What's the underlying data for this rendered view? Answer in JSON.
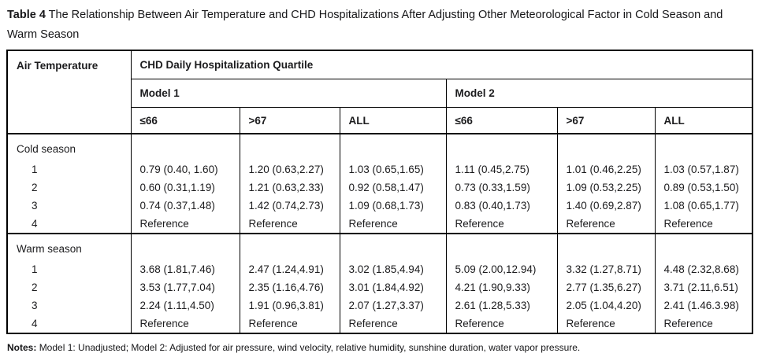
{
  "title": {
    "label": "Table 4",
    "text": "The Relationship Between Air Temperature and CHD Hospitalizations After Adjusting Other Meteorological Factor in Cold Season and Warm Season"
  },
  "table": {
    "col1_header": "Air Temperature",
    "group_header": "CHD Daily Hospitalization Quartile",
    "model_headers": [
      "Model 1",
      "Model 2"
    ],
    "quartile_headers": [
      "≤66",
      ">67",
      "ALL",
      "≤66",
      ">67",
      "ALL"
    ],
    "sections": [
      {
        "season": "Cold season",
        "rows": [
          {
            "label": "1",
            "values": [
              "0.79 (0.40, 1.60)",
              "1.20 (0.63,2.27)",
              "1.03 (0.65,1.65)",
              "1.11 (0.45,2.75)",
              "1.01 (0.46,2.25)",
              "1.03 (0.57,1.87)"
            ]
          },
          {
            "label": "2",
            "values": [
              "0.60 (0.31,1.19)",
              "1.21 (0.63,2.33)",
              "0.92 (0.58,1.47)",
              "0.73 (0.33,1.59)",
              "1.09 (0.53,2.25)",
              "0.89 (0.53,1.50)"
            ]
          },
          {
            "label": "3",
            "values": [
              "0.74 (0.37,1.48)",
              "1.42 (0.74,2.73)",
              "1.09 (0.68,1.73)",
              "0.83 (0.40,1.73)",
              "1.40 (0.69,2.87)",
              "1.08 (0.65,1.77)"
            ]
          },
          {
            "label": "4",
            "values": [
              "Reference",
              "Reference",
              "Reference",
              "Reference",
              "Reference",
              "Reference"
            ]
          }
        ]
      },
      {
        "season": "Warm season",
        "rows": [
          {
            "label": "1",
            "values": [
              "3.68 (1.81,7.46)",
              "2.47 (1.24,4.91)",
              "3.02 (1.85,4.94)",
              "5.09 (2.00,12.94)",
              "3.32 (1.27,8.71)",
              "4.48 (2.32,8.68)"
            ]
          },
          {
            "label": "2",
            "values": [
              "3.53 (1.77,7.04)",
              "2.35 (1.16,4.76)",
              "3.01 (1.84,4.92)",
              "4.21 (1.90,9.33)",
              "2.77 (1.35,6.27)",
              "3.71 (2.11,6.51)"
            ]
          },
          {
            "label": "3",
            "values": [
              "2.24 (1.11,4.50)",
              "1.91 (0.96,3.81)",
              "2.07 (1.27,3.37)",
              "2.61 (1.28,5.33)",
              "2.05 (1.04,4.20)",
              "2.41 (1.46.3.98)"
            ]
          },
          {
            "label": "4",
            "values": [
              "Reference",
              "Reference",
              "Reference",
              "Reference",
              "Reference",
              "Reference"
            ]
          }
        ]
      }
    ]
  },
  "notes": {
    "label": "Notes:",
    "text": "Model 1: Unadjusted; Model 2: Adjusted for air pressure, wind velocity, relative humidity, sunshine duration, water vapor pressure."
  }
}
